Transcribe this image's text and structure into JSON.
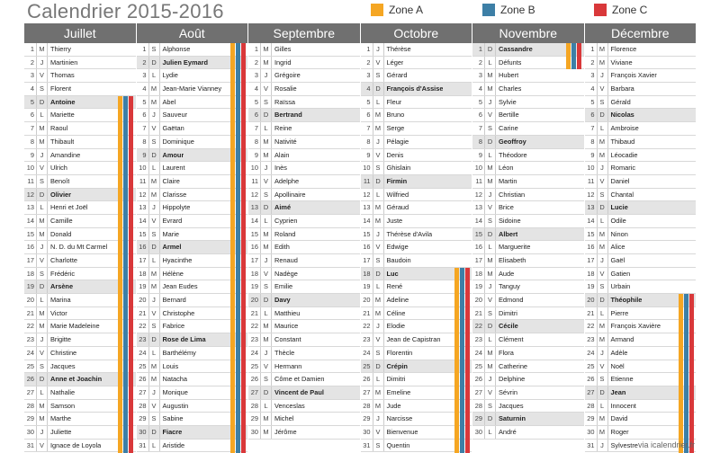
{
  "title": "Calendrier 2015-2016",
  "zones": [
    {
      "label": "Zone A",
      "color": "#f5a623"
    },
    {
      "label": "Zone B",
      "color": "#3d7fa6"
    },
    {
      "label": "Zone C",
      "color": "#d9383a"
    }
  ],
  "footer": "via icalendrier.fr",
  "months": [
    {
      "name": "Juillet",
      "days": [
        [
          "1",
          "M",
          "Thierry"
        ],
        [
          "2",
          "J",
          "Martinien"
        ],
        [
          "3",
          "V",
          "Thomas"
        ],
        [
          "4",
          "S",
          "Florent"
        ],
        [
          "5",
          "D",
          "Antoine"
        ],
        [
          "6",
          "L",
          "Mariette"
        ],
        [
          "7",
          "M",
          "Raoul"
        ],
        [
          "8",
          "M",
          "Thibault"
        ],
        [
          "9",
          "J",
          "Amandine"
        ],
        [
          "10",
          "V",
          "Ulrich"
        ],
        [
          "11",
          "S",
          "Benoît"
        ],
        [
          "12",
          "D",
          "Olivier"
        ],
        [
          "13",
          "L",
          "Henri et Joël"
        ],
        [
          "14",
          "M",
          "Camille"
        ],
        [
          "15",
          "M",
          "Donald"
        ],
        [
          "16",
          "J",
          "N. D. du Mt Carmel"
        ],
        [
          "17",
          "V",
          "Charlotte"
        ],
        [
          "18",
          "S",
          "Frédéric"
        ],
        [
          "19",
          "D",
          "Arsène"
        ],
        [
          "20",
          "L",
          "Marina"
        ],
        [
          "21",
          "M",
          "Victor"
        ],
        [
          "22",
          "M",
          "Marie Madeleine"
        ],
        [
          "23",
          "J",
          "Brigitte"
        ],
        [
          "24",
          "V",
          "Christine"
        ],
        [
          "25",
          "S",
          "Jacques"
        ],
        [
          "26",
          "D",
          "Anne et Joachin"
        ],
        [
          "27",
          "L",
          "Nathalie"
        ],
        [
          "28",
          "M",
          "Samson"
        ],
        [
          "29",
          "M",
          "Marthe"
        ],
        [
          "30",
          "J",
          "Juliette"
        ],
        [
          "31",
          "V",
          "Ignace de Loyola"
        ]
      ]
    },
    {
      "name": "Août",
      "days": [
        [
          "1",
          "S",
          "Alphonse"
        ],
        [
          "2",
          "D",
          "Julien Eymard"
        ],
        [
          "3",
          "L",
          "Lydie"
        ],
        [
          "4",
          "M",
          "Jean-Marie Vianney"
        ],
        [
          "5",
          "M",
          "Abel"
        ],
        [
          "6",
          "J",
          "Sauveur"
        ],
        [
          "7",
          "V",
          "Gaëtan"
        ],
        [
          "8",
          "S",
          "Dominique"
        ],
        [
          "9",
          "D",
          "Amour"
        ],
        [
          "10",
          "L",
          "Laurent"
        ],
        [
          "11",
          "M",
          "Claire"
        ],
        [
          "12",
          "M",
          "Clarisse"
        ],
        [
          "13",
          "J",
          "Hippolyte"
        ],
        [
          "14",
          "V",
          "Evrard"
        ],
        [
          "15",
          "S",
          "Marie"
        ],
        [
          "16",
          "D",
          "Armel"
        ],
        [
          "17",
          "L",
          "Hyacinthe"
        ],
        [
          "18",
          "M",
          "Hélène"
        ],
        [
          "19",
          "M",
          "Jean Eudes"
        ],
        [
          "20",
          "J",
          "Bernard"
        ],
        [
          "21",
          "V",
          "Christophe"
        ],
        [
          "22",
          "S",
          "Fabrice"
        ],
        [
          "23",
          "D",
          "Rose de Lima"
        ],
        [
          "24",
          "L",
          "Barthélémy"
        ],
        [
          "25",
          "M",
          "Louis"
        ],
        [
          "26",
          "M",
          "Natacha"
        ],
        [
          "27",
          "J",
          "Monique"
        ],
        [
          "28",
          "V",
          "Augustin"
        ],
        [
          "29",
          "S",
          "Sabine"
        ],
        [
          "30",
          "D",
          "Fiacre"
        ],
        [
          "31",
          "L",
          "Aristide"
        ]
      ]
    },
    {
      "name": "Septembre",
      "days": [
        [
          "1",
          "M",
          "Gilles"
        ],
        [
          "2",
          "M",
          "Ingrid"
        ],
        [
          "3",
          "J",
          "Grégoire"
        ],
        [
          "4",
          "V",
          "Rosalie"
        ],
        [
          "5",
          "S",
          "Raïssa"
        ],
        [
          "6",
          "D",
          "Bertrand"
        ],
        [
          "7",
          "L",
          "Reine"
        ],
        [
          "8",
          "M",
          "Nativité"
        ],
        [
          "9",
          "M",
          "Alain"
        ],
        [
          "10",
          "J",
          "Inès"
        ],
        [
          "11",
          "V",
          "Adelphe"
        ],
        [
          "12",
          "S",
          "Apollinaire"
        ],
        [
          "13",
          "D",
          "Aimé"
        ],
        [
          "14",
          "L",
          "Cyprien"
        ],
        [
          "15",
          "M",
          "Roland"
        ],
        [
          "16",
          "M",
          "Edith"
        ],
        [
          "17",
          "J",
          "Renaud"
        ],
        [
          "18",
          "V",
          "Nadège"
        ],
        [
          "19",
          "S",
          "Emilie"
        ],
        [
          "20",
          "D",
          "Davy"
        ],
        [
          "21",
          "L",
          "Matthieu"
        ],
        [
          "22",
          "M",
          "Maurice"
        ],
        [
          "23",
          "M",
          "Constant"
        ],
        [
          "24",
          "J",
          "Thècle"
        ],
        [
          "25",
          "V",
          "Hermann"
        ],
        [
          "26",
          "S",
          "Côme et Damien"
        ],
        [
          "27",
          "D",
          "Vincent de Paul"
        ],
        [
          "28",
          "L",
          "Venceslas"
        ],
        [
          "29",
          "M",
          "Michel"
        ],
        [
          "30",
          "M",
          "Jérôme"
        ]
      ]
    },
    {
      "name": "Octobre",
      "days": [
        [
          "1",
          "J",
          "Thérèse"
        ],
        [
          "2",
          "V",
          "Léger"
        ],
        [
          "3",
          "S",
          "Gérard"
        ],
        [
          "4",
          "D",
          "François d'Assise"
        ],
        [
          "5",
          "L",
          "Fleur"
        ],
        [
          "6",
          "M",
          "Bruno"
        ],
        [
          "7",
          "M",
          "Serge"
        ],
        [
          "8",
          "J",
          "Pélagie"
        ],
        [
          "9",
          "V",
          "Denis"
        ],
        [
          "10",
          "S",
          "Ghislain"
        ],
        [
          "11",
          "D",
          "Firmin"
        ],
        [
          "12",
          "L",
          "Wilfried"
        ],
        [
          "13",
          "M",
          "Géraud"
        ],
        [
          "14",
          "M",
          "Juste"
        ],
        [
          "15",
          "J",
          "Thérèse d'Avila"
        ],
        [
          "16",
          "V",
          "Edwige"
        ],
        [
          "17",
          "S",
          "Baudoin"
        ],
        [
          "18",
          "D",
          "Luc"
        ],
        [
          "19",
          "L",
          "René"
        ],
        [
          "20",
          "M",
          "Adeline"
        ],
        [
          "21",
          "M",
          "Céline"
        ],
        [
          "22",
          "J",
          "Elodie"
        ],
        [
          "23",
          "V",
          "Jean de Capistran"
        ],
        [
          "24",
          "S",
          "Florentin"
        ],
        [
          "25",
          "D",
          "Crépin"
        ],
        [
          "26",
          "L",
          "Dimitri"
        ],
        [
          "27",
          "M",
          "Emeline"
        ],
        [
          "28",
          "M",
          "Jude"
        ],
        [
          "29",
          "J",
          "Narcisse"
        ],
        [
          "30",
          "V",
          "Bienvenue"
        ],
        [
          "31",
          "S",
          "Quentin"
        ]
      ]
    },
    {
      "name": "Novembre",
      "days": [
        [
          "1",
          "D",
          "Cassandre"
        ],
        [
          "2",
          "L",
          "Défunts"
        ],
        [
          "3",
          "M",
          "Hubert"
        ],
        [
          "4",
          "M",
          "Charles"
        ],
        [
          "5",
          "J",
          "Sylvie"
        ],
        [
          "6",
          "V",
          "Bertille"
        ],
        [
          "7",
          "S",
          "Carine"
        ],
        [
          "8",
          "D",
          "Geoffroy"
        ],
        [
          "9",
          "L",
          "Théodore"
        ],
        [
          "10",
          "M",
          "Léon"
        ],
        [
          "11",
          "M",
          "Martin"
        ],
        [
          "12",
          "J",
          "Christian"
        ],
        [
          "13",
          "V",
          "Brice"
        ],
        [
          "14",
          "S",
          "Sidoine"
        ],
        [
          "15",
          "D",
          "Albert"
        ],
        [
          "16",
          "L",
          "Marguerite"
        ],
        [
          "17",
          "M",
          "Elisabeth"
        ],
        [
          "18",
          "M",
          "Aude"
        ],
        [
          "19",
          "J",
          "Tanguy"
        ],
        [
          "20",
          "V",
          "Edmond"
        ],
        [
          "21",
          "S",
          "Dimitri"
        ],
        [
          "22",
          "D",
          "Cécile"
        ],
        [
          "23",
          "L",
          "Clément"
        ],
        [
          "24",
          "M",
          "Flora"
        ],
        [
          "25",
          "M",
          "Catherine"
        ],
        [
          "26",
          "J",
          "Delphine"
        ],
        [
          "27",
          "V",
          "Sévrin"
        ],
        [
          "28",
          "S",
          "Jacques"
        ],
        [
          "29",
          "D",
          "Saturnin"
        ],
        [
          "30",
          "L",
          "André"
        ]
      ]
    },
    {
      "name": "Décembre",
      "days": [
        [
          "1",
          "M",
          "Florence"
        ],
        [
          "2",
          "M",
          "Viviane"
        ],
        [
          "3",
          "J",
          "François Xavier"
        ],
        [
          "4",
          "V",
          "Barbara"
        ],
        [
          "5",
          "S",
          "Gérald"
        ],
        [
          "6",
          "D",
          "Nicolas"
        ],
        [
          "7",
          "L",
          "Ambroise"
        ],
        [
          "8",
          "M",
          "Thibaud"
        ],
        [
          "9",
          "M",
          "Léocadie"
        ],
        [
          "10",
          "J",
          "Romaric"
        ],
        [
          "11",
          "V",
          "Daniel"
        ],
        [
          "12",
          "S",
          "Chantal"
        ],
        [
          "13",
          "D",
          "Lucie"
        ],
        [
          "14",
          "L",
          "Odile"
        ],
        [
          "15",
          "M",
          "Ninon"
        ],
        [
          "16",
          "M",
          "Alice"
        ],
        [
          "17",
          "J",
          "Gaël"
        ],
        [
          "18",
          "V",
          "Gatien"
        ],
        [
          "19",
          "S",
          "Urbain"
        ],
        [
          "20",
          "D",
          "Théophile"
        ],
        [
          "21",
          "L",
          "Pierre"
        ],
        [
          "22",
          "M",
          "François Xavière"
        ],
        [
          "23",
          "M",
          "Armand"
        ],
        [
          "24",
          "J",
          "Adèle"
        ],
        [
          "25",
          "V",
          "Noël"
        ],
        [
          "26",
          "S",
          "Etienne"
        ],
        [
          "27",
          "D",
          "Jean"
        ],
        [
          "28",
          "L",
          "Innocent"
        ],
        [
          "29",
          "M",
          "David"
        ],
        [
          "30",
          "M",
          "Roger"
        ],
        [
          "31",
          "J",
          "Sylvestre"
        ]
      ]
    }
  ],
  "holidays": [
    {
      "month": 0,
      "from": 5,
      "to": 31
    },
    {
      "month": 1,
      "from": 1,
      "to": 31
    },
    {
      "month": 3,
      "from": 18,
      "to": 31
    },
    {
      "month": 4,
      "from": 1,
      "to": 2
    },
    {
      "month": 5,
      "from": 20,
      "to": 31
    }
  ]
}
